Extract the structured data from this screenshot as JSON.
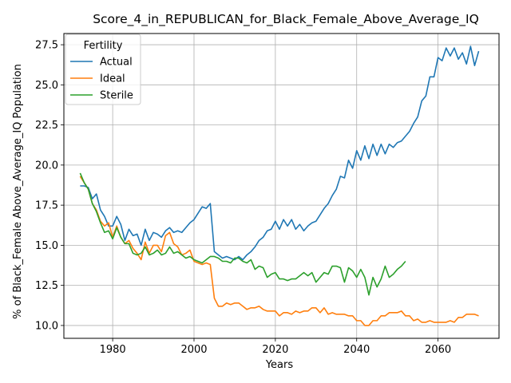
{
  "chart_data": {
    "type": "line",
    "title": "Score_4_in_REPUBLICAN_for_Black_Female_Above_Average_IQ",
    "xlabel": "Years",
    "ylabel": "% of Black_Female Above_Average_IQ Population",
    "xlim": [
      1968,
      2075
    ],
    "ylim": [
      9.2,
      28.2
    ],
    "xticks": [
      1980,
      2000,
      2020,
      2040,
      2060
    ],
    "yticks": [
      10.0,
      12.5,
      15.0,
      17.5,
      20.0,
      22.5,
      25.0,
      27.5
    ],
    "ytick_labels": [
      "10.0",
      "12.5",
      "15.0",
      "17.5",
      "20.0",
      "22.5",
      "25.0",
      "27.5"
    ],
    "grid": true,
    "legend": {
      "title": "Fertility",
      "placement": "top-left"
    },
    "series": [
      {
        "name": "Actual",
        "color": "#1f77b4",
        "x": [
          1972,
          1973,
          1974,
          1975,
          1976,
          1977,
          1978,
          1979,
          1980,
          1981,
          1982,
          1983,
          1984,
          1985,
          1986,
          1987,
          1988,
          1989,
          1990,
          1991,
          1992,
          1993,
          1994,
          1995,
          1996,
          1997,
          1998,
          1999,
          2000,
          2001,
          2002,
          2003,
          2004,
          2005,
          2006,
          2007,
          2008,
          2009,
          2010,
          2011,
          2012,
          2013,
          2014,
          2015,
          2016,
          2017,
          2018,
          2019,
          2020,
          2021,
          2022,
          2023,
          2024,
          2025,
          2026,
          2027,
          2028,
          2029,
          2030,
          2031,
          2032,
          2033,
          2034,
          2035,
          2036,
          2037,
          2038,
          2039,
          2040,
          2041,
          2042,
          2043,
          2044,
          2045,
          2046,
          2047,
          2048,
          2049,
          2050,
          2051,
          2052,
          2053,
          2054,
          2055,
          2056,
          2057,
          2058,
          2059,
          2060,
          2061,
          2062,
          2063,
          2064,
          2065,
          2066,
          2067,
          2068,
          2069,
          2070
        ],
        "values": [
          18.7,
          18.7,
          18.6,
          17.9,
          18.2,
          17.2,
          16.8,
          16.2,
          16.2,
          16.8,
          16.3,
          15.3,
          16.0,
          15.6,
          15.7,
          15.0,
          16.0,
          15.3,
          15.8,
          15.7,
          15.5,
          15.9,
          16.1,
          15.8,
          15.9,
          15.8,
          16.1,
          16.4,
          16.6,
          17.0,
          17.4,
          17.3,
          17.6,
          14.6,
          14.4,
          14.2,
          14.3,
          14.2,
          14.1,
          14.3,
          14.1,
          14.4,
          14.6,
          14.9,
          15.3,
          15.5,
          15.9,
          16.0,
          16.5,
          16.0,
          16.6,
          16.2,
          16.6,
          16.0,
          16.3,
          15.9,
          16.2,
          16.4,
          16.5,
          16.9,
          17.3,
          17.6,
          18.1,
          18.5,
          19.3,
          19.2,
          20.3,
          19.8,
          20.9,
          20.3,
          21.2,
          20.4,
          21.3,
          20.6,
          21.3,
          20.7,
          21.3,
          21.1,
          21.4,
          21.5,
          21.8,
          22.1,
          22.6,
          23.0,
          24.0,
          24.3,
          25.5,
          25.5,
          26.7,
          26.5,
          27.3,
          26.8,
          27.3,
          26.6,
          27.0,
          26.3,
          27.4,
          26.2,
          27.1
        ]
      },
      {
        "name": "Ideal",
        "color": "#ff7f0e",
        "x": [
          1972,
          1973,
          1974,
          1975,
          1976,
          1977,
          1978,
          1979,
          1980,
          1981,
          1982,
          1983,
          1984,
          1985,
          1986,
          1987,
          1988,
          1989,
          1990,
          1991,
          1992,
          1993,
          1994,
          1995,
          1996,
          1997,
          1998,
          1999,
          2000,
          2001,
          2002,
          2003,
          2004,
          2005,
          2006,
          2007,
          2008,
          2009,
          2010,
          2011,
          2012,
          2013,
          2014,
          2015,
          2016,
          2017,
          2018,
          2019,
          2020,
          2021,
          2022,
          2023,
          2024,
          2025,
          2026,
          2027,
          2028,
          2029,
          2030,
          2031,
          2032,
          2033,
          2034,
          2035,
          2036,
          2037,
          2038,
          2039,
          2040,
          2041,
          2042,
          2043,
          2044,
          2045,
          2046,
          2047,
          2048,
          2049,
          2050,
          2051,
          2052,
          2053,
          2054,
          2055,
          2056,
          2057,
          2058,
          2059,
          2060,
          2061,
          2062,
          2063,
          2064,
          2065,
          2066,
          2067,
          2068,
          2069,
          2070
        ],
        "values": [
          19.3,
          18.9,
          18.5,
          17.6,
          17.2,
          16.5,
          16.2,
          16.4,
          15.5,
          16.2,
          15.5,
          15.1,
          15.3,
          14.8,
          14.5,
          14.1,
          15.2,
          14.5,
          15.0,
          15.0,
          14.6,
          15.6,
          15.8,
          15.1,
          14.9,
          14.4,
          14.5,
          14.7,
          14.0,
          13.9,
          13.8,
          13.9,
          13.8,
          11.7,
          11.2,
          11.2,
          11.4,
          11.3,
          11.4,
          11.4,
          11.2,
          11.0,
          11.1,
          11.1,
          11.2,
          11.0,
          10.9,
          10.9,
          10.9,
          10.6,
          10.8,
          10.8,
          10.7,
          10.9,
          10.8,
          10.9,
          10.9,
          11.1,
          11.1,
          10.8,
          11.1,
          10.7,
          10.8,
          10.7,
          10.7,
          10.7,
          10.6,
          10.6,
          10.3,
          10.3,
          10.0,
          10.0,
          10.3,
          10.3,
          10.6,
          10.6,
          10.8,
          10.8,
          10.8,
          10.9,
          10.6,
          10.6,
          10.3,
          10.4,
          10.2,
          10.2,
          10.3,
          10.2,
          10.2,
          10.2,
          10.2,
          10.3,
          10.2,
          10.5,
          10.5,
          10.7,
          10.7,
          10.7,
          10.6
        ]
      },
      {
        "name": "Sterile",
        "color": "#2ca02c",
        "x": [
          1972,
          1973,
          1974,
          1975,
          1976,
          1977,
          1978,
          1979,
          1980,
          1981,
          1982,
          1983,
          1984,
          1985,
          1986,
          1987,
          1988,
          1989,
          1990,
          1991,
          1992,
          1993,
          1994,
          1995,
          1996,
          1997,
          1998,
          1999,
          2000,
          2001,
          2002,
          2003,
          2004,
          2005,
          2006,
          2007,
          2008,
          2009,
          2010,
          2011,
          2012,
          2013,
          2014,
          2015,
          2016,
          2017,
          2018,
          2019,
          2020,
          2021,
          2022,
          2023,
          2024,
          2025,
          2026,
          2027,
          2028,
          2029,
          2030,
          2031,
          2032,
          2033,
          2034,
          2035,
          2036,
          2037,
          2038,
          2039,
          2040,
          2041,
          2042,
          2043,
          2044,
          2045,
          2046,
          2047,
          2048,
          2049,
          2050,
          2051,
          2052
        ],
        "values": [
          19.5,
          18.9,
          18.5,
          17.6,
          17.1,
          16.4,
          15.8,
          15.9,
          15.4,
          16.1,
          15.5,
          15.1,
          15.1,
          14.5,
          14.4,
          14.5,
          14.9,
          14.4,
          14.5,
          14.7,
          14.4,
          14.5,
          14.9,
          14.5,
          14.6,
          14.4,
          14.2,
          14.3,
          14.1,
          14.0,
          13.9,
          14.1,
          14.3,
          14.3,
          14.2,
          14.0,
          14.0,
          13.9,
          14.2,
          14.2,
          14.0,
          13.9,
          14.1,
          13.5,
          13.7,
          13.6,
          13.0,
          13.2,
          13.3,
          12.9,
          12.9,
          12.8,
          12.9,
          12.9,
          13.1,
          13.3,
          13.1,
          13.3,
          12.7,
          13.0,
          13.3,
          13.2,
          13.7,
          13.7,
          13.6,
          12.7,
          13.6,
          13.4,
          13.0,
          13.5,
          13.0,
          11.9,
          13.0,
          12.4,
          12.9,
          13.7,
          13.0,
          13.2,
          13.5,
          13.7,
          14.0
        ]
      }
    ]
  }
}
